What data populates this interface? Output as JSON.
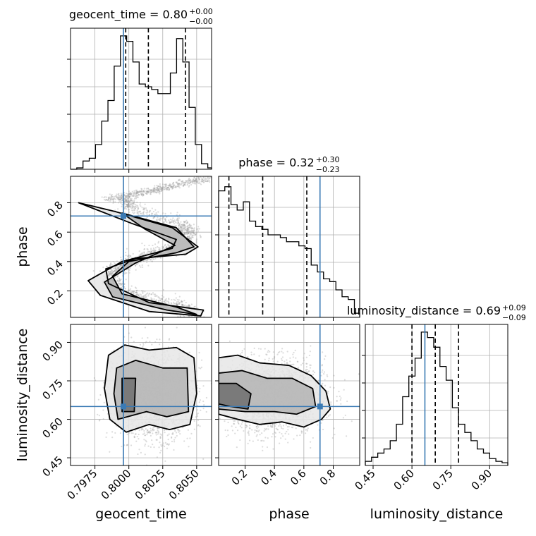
{
  "chart_data": {
    "type": "corner",
    "parameters": [
      "geocent_time",
      "phase",
      "luminosity_distance"
    ],
    "truth": {
      "geocent_time": 0.7996,
      "phase": 0.71,
      "luminosity_distance": 0.65
    },
    "titles": [
      {
        "text": "geocent_time = 0.80",
        "sup": "+0.00",
        "sub": "−0.00"
      },
      {
        "text": "phase = 0.32",
        "sup": "+0.30",
        "sub": "−0.23"
      },
      {
        "text": "luminosity_distance = 0.69",
        "sup": "+0.09",
        "sub": "−0.09"
      }
    ],
    "axes": {
      "geocent_time": {
        "range": [
          0.7957,
          0.8061
        ],
        "ticks": [
          "0.7975",
          "0.8000",
          "0.8025",
          "0.8050"
        ],
        "tick_values": [
          0.7975,
          0.8,
          0.8025,
          0.805
        ]
      },
      "phase": {
        "range": [
          0.02,
          0.98
        ],
        "ticks": [
          "0.2",
          "0.4",
          "0.6",
          "0.8"
        ],
        "tick_values": [
          0.2,
          0.4,
          0.6,
          0.8
        ]
      },
      "luminosity_distance": {
        "range": [
          0.42,
          0.97
        ],
        "ticks": [
          "0.45",
          "0.60",
          "0.75",
          "0.90"
        ],
        "tick_values": [
          0.45,
          0.6,
          0.75,
          0.9
        ]
      }
    },
    "axis_labels": {
      "x": [
        "geocent_time",
        "phase",
        "luminosity_distance"
      ],
      "y": [
        "phase",
        "luminosity_distance"
      ]
    },
    "histograms": {
      "geocent_time": {
        "edges": [
          0.7957,
          0.79616,
          0.79662,
          0.79708,
          0.79754,
          0.798,
          0.79846,
          0.79892,
          0.79938,
          0.79984,
          0.8003,
          0.80076,
          0.80122,
          0.80168,
          0.80214,
          0.8026,
          0.80306,
          0.80352,
          0.80398,
          0.80444,
          0.8049,
          0.80536,
          0.80582,
          0.8061
        ],
        "counts": [
          0,
          0.01,
          0.06,
          0.08,
          0.18,
          0.35,
          0.5,
          0.75,
          0.97,
          0.93,
          0.78,
          0.62,
          0.6,
          0.58,
          0.55,
          0.55,
          0.7,
          0.95,
          0.78,
          0.45,
          0.18,
          0.04,
          0.01
        ],
        "quantiles": [
          0.79977,
          0.80144,
          0.80417
        ]
      },
      "phase": {
        "edges": [
          0.02,
          0.062,
          0.104,
          0.146,
          0.188,
          0.23,
          0.272,
          0.314,
          0.356,
          0.398,
          0.44,
          0.482,
          0.524,
          0.566,
          0.608,
          0.65,
          0.692,
          0.734,
          0.776,
          0.818,
          0.86,
          0.902,
          0.944,
          0.98
        ],
        "counts": [
          0.92,
          0.95,
          0.82,
          0.78,
          0.84,
          0.7,
          0.66,
          0.64,
          0.6,
          0.6,
          0.58,
          0.55,
          0.55,
          0.52,
          0.5,
          0.38,
          0.33,
          0.28,
          0.26,
          0.2,
          0.15,
          0.13,
          0.03
        ],
        "quantiles": [
          0.09,
          0.32,
          0.62
        ]
      },
      "luminosity_distance": {
        "edges": [
          0.42,
          0.444,
          0.468,
          0.492,
          0.516,
          0.54,
          0.564,
          0.588,
          0.612,
          0.636,
          0.66,
          0.684,
          0.708,
          0.732,
          0.756,
          0.78,
          0.804,
          0.828,
          0.852,
          0.876,
          0.9,
          0.924,
          0.948,
          0.97
        ],
        "counts": [
          0.03,
          0.06,
          0.09,
          0.12,
          0.18,
          0.3,
          0.5,
          0.65,
          0.78,
          0.97,
          0.93,
          0.86,
          0.72,
          0.62,
          0.42,
          0.3,
          0.24,
          0.18,
          0.12,
          0.09,
          0.05,
          0.03,
          0.02
        ],
        "quantiles": [
          0.6,
          0.69,
          0.78
        ]
      }
    },
    "scatter_2d": {
      "phase_vs_geocent_time": {
        "x_mean": [
          0.7996,
          0.8004,
          0.8036,
          0.8046,
          0.8032,
          0.8014,
          0.7996,
          0.7985,
          0.7994,
          0.8015,
          0.8038,
          0.805
        ],
        "y_mean": [
          0.82,
          0.76,
          0.66,
          0.58,
          0.5,
          0.44,
          0.38,
          0.3,
          0.2,
          0.14,
          0.09,
          0.05
        ]
      },
      "luminosity_distance_vs_geocent_time": {
        "x_center": 0.8018,
        "x_spread": 0.0024,
        "y_center": 0.69,
        "y_spread": 0.09
      },
      "luminosity_distance_vs_phase": {
        "x_center": 0.38,
        "x_spread": 0.3,
        "y_center": 0.69,
        "y_spread": 0.08
      }
    },
    "contours_2d": {
      "phase_vs_geocent_time": [
        {
          "x": [
            0.7963,
            0.799,
            0.8032,
            0.8051,
            0.8042,
            0.8005,
            0.7983,
            0.7985,
            0.8015,
            0.8055,
            0.8053,
            0.8015,
            0.7979,
            0.797,
            0.7995,
            0.8032,
            0.8035,
            0.8002,
            0.7963
          ],
          "y": [
            0.8,
            0.74,
            0.63,
            0.5,
            0.45,
            0.42,
            0.35,
            0.25,
            0.12,
            0.07,
            0.03,
            0.06,
            0.17,
            0.27,
            0.4,
            0.49,
            0.55,
            0.66,
            0.8
          ]
        },
        {
          "x": [
            0.7995,
            0.8035,
            0.8048,
            0.8035,
            0.8,
            0.7988,
            0.7995,
            0.8035,
            0.805,
            0.8028,
            0.7988,
            0.7982,
            0.8005,
            0.8034,
            0.8012,
            0.7995
          ],
          "y": [
            0.73,
            0.63,
            0.5,
            0.46,
            0.4,
            0.3,
            0.18,
            0.09,
            0.04,
            0.07,
            0.16,
            0.26,
            0.39,
            0.51,
            0.62,
            0.73
          ]
        }
      ],
      "luminosity_distance_vs_geocent_time": [
        {
          "x": [
            0.7985,
            0.7997,
            0.8015,
            0.8035,
            0.8048,
            0.805,
            0.8045,
            0.803,
            0.8015,
            0.7998,
            0.7986,
            0.7982,
            0.7985
          ],
          "y": [
            0.85,
            0.89,
            0.87,
            0.88,
            0.84,
            0.7,
            0.58,
            0.56,
            0.58,
            0.55,
            0.6,
            0.72,
            0.85
          ]
        },
        {
          "x": [
            0.7991,
            0.8005,
            0.8025,
            0.8043,
            0.8044,
            0.8028,
            0.8013,
            0.7992,
            0.7989,
            0.7991
          ],
          "y": [
            0.8,
            0.83,
            0.8,
            0.8,
            0.63,
            0.61,
            0.63,
            0.6,
            0.7,
            0.8
          ]
        },
        {
          "x": [
            0.7995,
            0.8005,
            0.8004,
            0.7995,
            0.7995
          ],
          "y": [
            0.76,
            0.76,
            0.63,
            0.63,
            0.76
          ]
        }
      ],
      "luminosity_distance_vs_phase": [
        {
          "x": [
            0.02,
            0.15,
            0.3,
            0.5,
            0.65,
            0.75,
            0.78,
            0.72,
            0.6,
            0.45,
            0.3,
            0.15,
            0.02
          ],
          "y": [
            0.84,
            0.85,
            0.82,
            0.81,
            0.77,
            0.71,
            0.64,
            0.6,
            0.57,
            0.59,
            0.58,
            0.6,
            0.62
          ]
        },
        {
          "x": [
            0.02,
            0.18,
            0.35,
            0.52,
            0.66,
            0.68,
            0.55,
            0.4,
            0.2,
            0.02
          ],
          "y": [
            0.78,
            0.79,
            0.76,
            0.76,
            0.72,
            0.65,
            0.62,
            0.63,
            0.63,
            0.64
          ]
        },
        {
          "x": [
            0.02,
            0.14,
            0.24,
            0.22,
            0.1,
            0.02
          ],
          "y": [
            0.74,
            0.74,
            0.7,
            0.64,
            0.65,
            0.66
          ]
        }
      ]
    },
    "quantile_line_style": "dashed",
    "grid": true,
    "colors": {
      "hist": "#000000",
      "truth": "#3a7ab4",
      "grid": "#b0b0b0",
      "scatter": "#9a9a9a",
      "density": "#000000"
    }
  }
}
